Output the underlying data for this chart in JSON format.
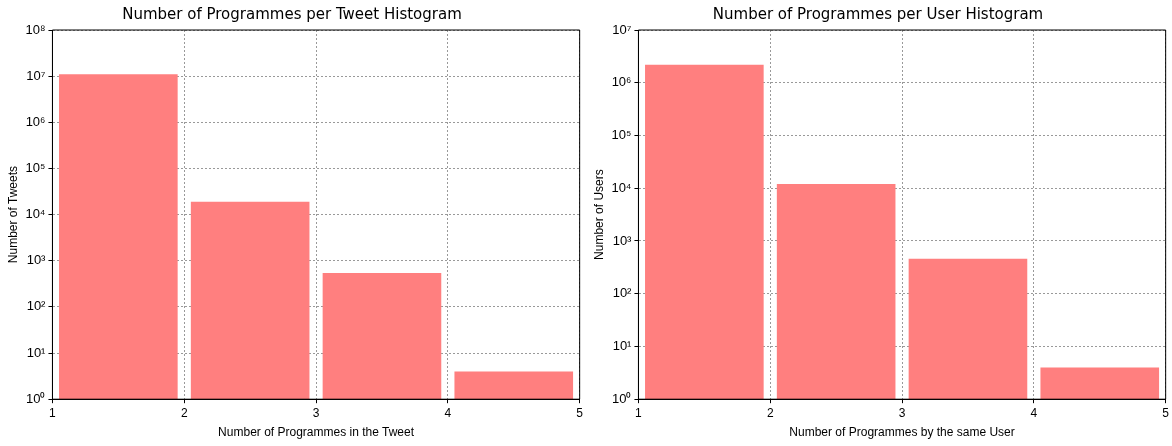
{
  "chart_data": [
    {
      "type": "histogram",
      "title": "Number of Programmes per Tweet Histogram",
      "xlabel": "Number of Programmes in the Tweet",
      "ylabel": "Number of Tweets",
      "bins": [
        1,
        2,
        3,
        4,
        5
      ],
      "values": [
        11000000,
        19000,
        540,
        4
      ],
      "color": "#ff7f7f",
      "log": "y",
      "xlim": [
        1,
        5
      ],
      "xticks": [
        1,
        2,
        3,
        4,
        5
      ],
      "ylim": [
        1,
        100000000
      ],
      "yticks": [
        {
          "value": 1,
          "label": "10⁰"
        },
        {
          "value": 10,
          "label": "10¹"
        },
        {
          "value": 100,
          "label": "10²"
        },
        {
          "value": 1000,
          "label": "10³"
        },
        {
          "value": 10000,
          "label": "10⁴"
        },
        {
          "value": 100000,
          "label": "10⁵"
        },
        {
          "value": 1000000,
          "label": "10⁶"
        },
        {
          "value": 10000000,
          "label": "10⁷"
        },
        {
          "value": 100000000,
          "label": "10⁸"
        }
      ],
      "grid": true
    },
    {
      "type": "histogram",
      "title": "Number of Programmes per User Histogram",
      "xlabel": "Number of Programmes by the same User",
      "ylabel": "Number of Users",
      "bins": [
        1,
        2,
        3,
        4,
        5
      ],
      "values": [
        2200000,
        12000,
        460,
        4
      ],
      "color": "#ff7f7f",
      "log": "y",
      "xlim": [
        1,
        5
      ],
      "xticks": [
        1,
        2,
        3,
        4,
        5
      ],
      "ylim": [
        1,
        10000000
      ],
      "yticks": [
        {
          "value": 1,
          "label": "10⁰"
        },
        {
          "value": 10,
          "label": "10¹"
        },
        {
          "value": 100,
          "label": "10²"
        },
        {
          "value": 1000,
          "label": "10³"
        },
        {
          "value": 10000,
          "label": "10⁴"
        },
        {
          "value": 100000,
          "label": "10⁵"
        },
        {
          "value": 1000000,
          "label": "10⁶"
        },
        {
          "value": 10000000,
          "label": "10⁷"
        }
      ],
      "grid": true
    }
  ]
}
